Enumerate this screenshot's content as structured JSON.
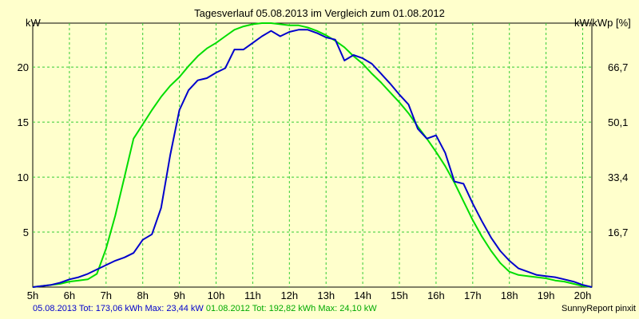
{
  "chart_data": {
    "type": "line",
    "title": "Tagesverlauf 05.08.2013 im Vergleich zum 01.08.2012",
    "ylabel_left": "kW",
    "ylabel_right": "kW/kWp [%]",
    "x_ticks": [
      "5h",
      "6h",
      "7h",
      "8h",
      "9h",
      "10h",
      "11h",
      "12h",
      "13h",
      "14h",
      "15h",
      "16h",
      "17h",
      "18h",
      "19h",
      "20h"
    ],
    "xlim": [
      5,
      20.25
    ],
    "ylim": [
      0,
      24
    ],
    "y_ticks_left": [
      5,
      10,
      15,
      20
    ],
    "y_ticks_right": [
      "16,7",
      "33,4",
      "50,1",
      "66,7"
    ],
    "grid": true,
    "series": [
      {
        "name": "05.08.2013",
        "color": "#0000cc",
        "x": [
          5.0,
          5.25,
          5.5,
          5.75,
          6.0,
          6.25,
          6.5,
          6.75,
          7.0,
          7.25,
          7.5,
          7.75,
          8.0,
          8.25,
          8.5,
          8.75,
          9.0,
          9.25,
          9.5,
          9.75,
          10.0,
          10.25,
          10.5,
          10.75,
          11.0,
          11.25,
          11.5,
          11.75,
          12.0,
          12.25,
          12.5,
          12.75,
          13.0,
          13.25,
          13.5,
          13.75,
          14.0,
          14.25,
          14.5,
          14.75,
          15.0,
          15.25,
          15.5,
          15.75,
          16.0,
          16.25,
          16.5,
          16.75,
          17.0,
          17.25,
          17.5,
          17.75,
          18.0,
          18.25,
          18.5,
          18.75,
          19.0,
          19.25,
          19.5,
          19.75,
          20.0,
          20.25
        ],
        "y": [
          0.0,
          0.1,
          0.2,
          0.4,
          0.7,
          0.9,
          1.2,
          1.6,
          2.0,
          2.4,
          2.7,
          3.1,
          4.3,
          4.8,
          7.2,
          12.0,
          16.1,
          17.9,
          18.8,
          19.0,
          19.5,
          19.9,
          21.6,
          21.6,
          22.2,
          22.8,
          23.3,
          22.8,
          23.2,
          23.4,
          23.4,
          23.1,
          22.7,
          22.5,
          20.6,
          21.1,
          20.8,
          20.3,
          19.4,
          18.5,
          17.5,
          16.6,
          14.4,
          13.5,
          13.8,
          12.2,
          9.6,
          9.4,
          7.6,
          6.0,
          4.5,
          3.3,
          2.4,
          1.7,
          1.4,
          1.1,
          1.0,
          0.9,
          0.7,
          0.5,
          0.2,
          0.0
        ]
      },
      {
        "name": "01.08.2012",
        "color": "#00dd00",
        "x": [
          5.0,
          5.25,
          5.5,
          5.75,
          6.0,
          6.25,
          6.5,
          6.75,
          7.0,
          7.25,
          7.5,
          7.75,
          8.0,
          8.25,
          8.5,
          8.75,
          9.0,
          9.25,
          9.5,
          9.75,
          10.0,
          10.25,
          10.5,
          10.75,
          11.0,
          11.25,
          11.5,
          11.75,
          12.0,
          12.25,
          12.5,
          12.75,
          13.0,
          13.25,
          13.5,
          13.75,
          14.0,
          14.25,
          14.5,
          14.75,
          15.0,
          15.25,
          15.5,
          15.75,
          16.0,
          16.25,
          16.5,
          16.75,
          17.0,
          17.25,
          17.5,
          17.75,
          18.0,
          18.25,
          18.5,
          18.75,
          19.0,
          19.25,
          19.5,
          19.75,
          20.0,
          20.25
        ],
        "y": [
          0.0,
          0.1,
          0.2,
          0.3,
          0.5,
          0.6,
          0.7,
          1.2,
          3.5,
          6.5,
          10.0,
          13.5,
          14.8,
          16.1,
          17.3,
          18.3,
          19.1,
          20.1,
          21.0,
          21.7,
          22.2,
          22.8,
          23.4,
          23.7,
          23.9,
          24.0,
          24.0,
          23.9,
          23.8,
          23.8,
          23.6,
          23.3,
          22.9,
          22.4,
          21.8,
          21.0,
          20.3,
          19.4,
          18.6,
          17.7,
          16.8,
          15.8,
          14.6,
          13.5,
          12.3,
          11.0,
          9.5,
          7.8,
          6.1,
          4.6,
          3.3,
          2.2,
          1.4,
          1.1,
          1.0,
          0.9,
          0.8,
          0.6,
          0.5,
          0.3,
          0.1,
          0.0
        ]
      }
    ],
    "footer_left": [
      {
        "text": "05.08.2013 Tot: 173,06 kWh Max: 23,44 kW",
        "color": "#0000cc"
      },
      {
        "text": "01.08.2012 Tot: 192,82 kWh Max: 24,10 kW",
        "color": "#00aa00"
      }
    ],
    "footer_right": "SunnyReport pinxit"
  }
}
